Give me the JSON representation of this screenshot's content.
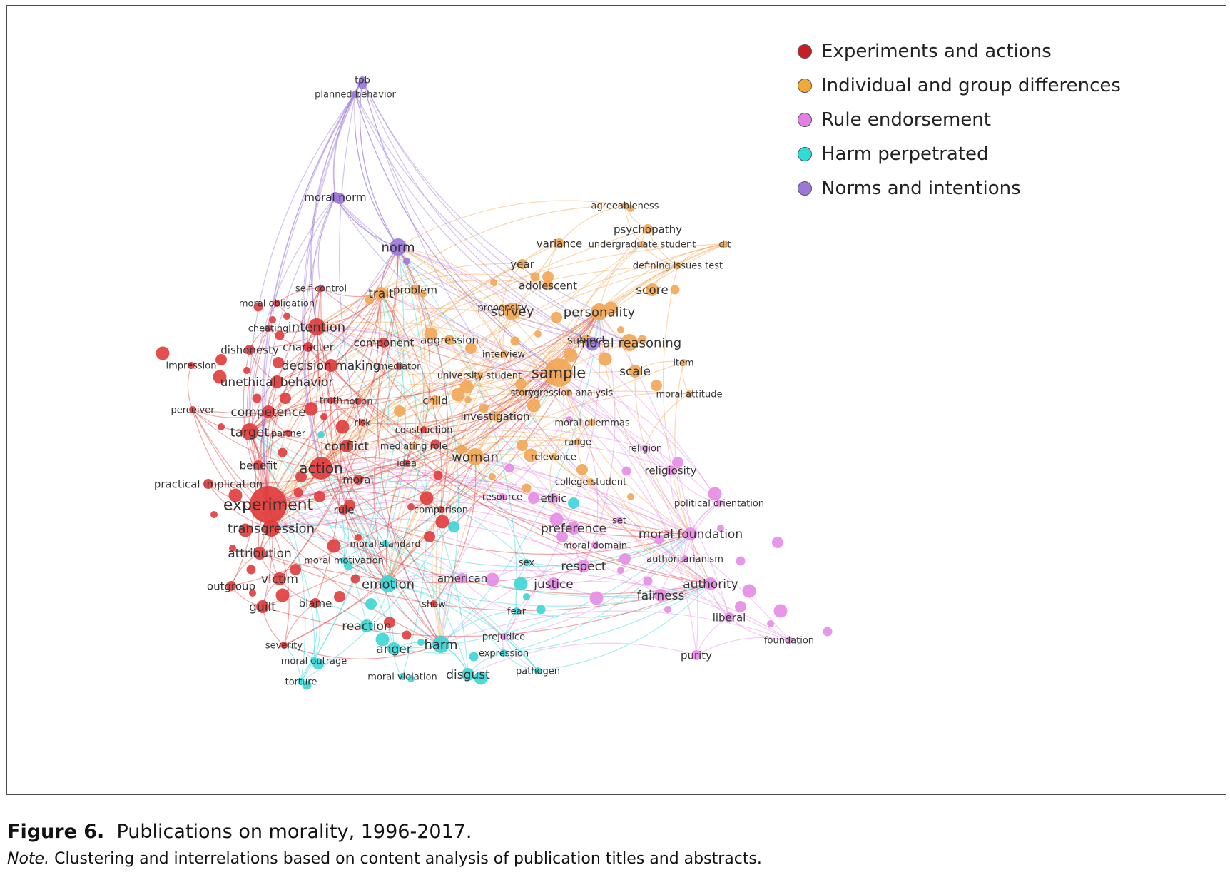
{
  "colors": {
    "experiments": "#e03c3c",
    "differences": "#f2a654",
    "rules": "#e68ce6",
    "harm": "#3cd6d6",
    "norms": "#9b77d9"
  },
  "legend": [
    {
      "label": "Experiments and actions",
      "color": "#c81e23"
    },
    {
      "label": "Individual and group differences",
      "color": "#f2a93b"
    },
    {
      "label": "Rule endorsement",
      "color": "#e57ee5"
    },
    {
      "label": "Harm perpetrated",
      "color": "#2fdcd6"
    },
    {
      "label": "Norms and intentions",
      "color": "#9b77d9"
    }
  ],
  "caption": {
    "figure_label": "Figure 6.",
    "title": "Publications on morality, 1996-2017.",
    "note_label": "Note.",
    "note_text": "Clustering and interrelations based on content analysis of publication titles and abstracts."
  },
  "nodes": [
    {
      "label": "tpb",
      "cluster": "norms",
      "size": 2
    },
    {
      "label": "planned behavior",
      "cluster": "norms",
      "size": 2
    },
    {
      "label": "moral norm",
      "cluster": "norms",
      "size": 3
    },
    {
      "label": "norm",
      "cluster": "norms",
      "size": 5
    },
    {
      "label": "agreeableness",
      "cluster": "differences",
      "size": 2
    },
    {
      "label": "psychopathy",
      "cluster": "differences",
      "size": 3
    },
    {
      "label": "variance",
      "cluster": "differences",
      "size": 3
    },
    {
      "label": "undergraduate student",
      "cluster": "differences",
      "size": 2
    },
    {
      "label": "dit",
      "cluster": "differences",
      "size": 2
    },
    {
      "label": "defining issues test",
      "cluster": "differences",
      "size": 2
    },
    {
      "label": "year",
      "cluster": "differences",
      "size": 3
    },
    {
      "label": "adolescent",
      "cluster": "differences",
      "size": 3
    },
    {
      "label": "score",
      "cluster": "differences",
      "size": 4
    },
    {
      "label": "trait",
      "cluster": "differences",
      "size": 4
    },
    {
      "label": "problem",
      "cluster": "differences",
      "size": 3
    },
    {
      "label": "propensity",
      "cluster": "differences",
      "size": 2
    },
    {
      "label": "survey",
      "cluster": "differences",
      "size": 5
    },
    {
      "label": "personality",
      "cluster": "differences",
      "size": 5
    },
    {
      "label": "subject",
      "cluster": "differences",
      "size": 3
    },
    {
      "label": "moral reasoning",
      "cluster": "differences",
      "size": 5
    },
    {
      "label": "aggression",
      "cluster": "differences",
      "size": 3
    },
    {
      "label": "interview",
      "cluster": "differences",
      "size": 2
    },
    {
      "label": "item",
      "cluster": "differences",
      "size": 2
    },
    {
      "label": "sample",
      "cluster": "differences",
      "size": 7
    },
    {
      "label": "scale",
      "cluster": "differences",
      "size": 4
    },
    {
      "label": "university student",
      "cluster": "differences",
      "size": 2
    },
    {
      "label": "story",
      "cluster": "differences",
      "size": 2
    },
    {
      "label": "regression analysis",
      "cluster": "differences",
      "size": 2
    },
    {
      "label": "moral attitude",
      "cluster": "differences",
      "size": 2
    },
    {
      "label": "child",
      "cluster": "differences",
      "size": 3
    },
    {
      "label": "investigation",
      "cluster": "differences",
      "size": 3
    },
    {
      "label": "moral dilemmas",
      "cluster": "differences",
      "size": 2
    },
    {
      "label": "range",
      "cluster": "differences",
      "size": 2
    },
    {
      "label": "relevance",
      "cluster": "differences",
      "size": 2
    },
    {
      "label": "woman",
      "cluster": "differences",
      "size": 5
    },
    {
      "label": "mediating role",
      "cluster": "differences",
      "size": 2
    },
    {
      "label": "college student",
      "cluster": "differences",
      "size": 2
    },
    {
      "label": "religion",
      "cluster": "rules",
      "size": 2
    },
    {
      "label": "religiosity",
      "cluster": "rules",
      "size": 3
    },
    {
      "label": "political orientation",
      "cluster": "rules",
      "size": 2
    },
    {
      "label": "resource",
      "cluster": "rules",
      "size": 2
    },
    {
      "label": "ethic",
      "cluster": "rules",
      "size": 3
    },
    {
      "label": "preference",
      "cluster": "rules",
      "size": 4
    },
    {
      "label": "set",
      "cluster": "rules",
      "size": 2
    },
    {
      "label": "moral foundation",
      "cluster": "rules",
      "size": 4
    },
    {
      "label": "moral domain",
      "cluster": "rules",
      "size": 2
    },
    {
      "label": "authoritarianism",
      "cluster": "rules",
      "size": 2
    },
    {
      "label": "respect",
      "cluster": "rules",
      "size": 4
    },
    {
      "label": "justice",
      "cluster": "rules",
      "size": 4
    },
    {
      "label": "authority",
      "cluster": "rules",
      "size": 4
    },
    {
      "label": "fairness",
      "cluster": "rules",
      "size": 4
    },
    {
      "label": "liberal",
      "cluster": "rules",
      "size": 3
    },
    {
      "label": "foundation",
      "cluster": "rules",
      "size": 2
    },
    {
      "label": "purity",
      "cluster": "rules",
      "size": 3
    },
    {
      "label": "prejudice",
      "cluster": "rules",
      "size": 2
    },
    {
      "label": "american",
      "cluster": "rules",
      "size": 3
    },
    {
      "label": "sex",
      "cluster": "harm",
      "size": 2
    },
    {
      "label": "fear",
      "cluster": "harm",
      "size": 2
    },
    {
      "label": "expression",
      "cluster": "harm",
      "size": 2
    },
    {
      "label": "pathogen",
      "cluster": "harm",
      "size": 2
    },
    {
      "label": "disgust",
      "cluster": "harm",
      "size": 4
    },
    {
      "label": "harm",
      "cluster": "harm",
      "size": 5
    },
    {
      "label": "anger",
      "cluster": "harm",
      "size": 4
    },
    {
      "label": "reaction",
      "cluster": "harm",
      "size": 4
    },
    {
      "label": "emotion",
      "cluster": "harm",
      "size": 5
    },
    {
      "label": "moral standard",
      "cluster": "harm",
      "size": 2
    },
    {
      "label": "moral motivation",
      "cluster": "harm",
      "size": 2
    },
    {
      "label": "moral outrage",
      "cluster": "harm",
      "size": 2
    },
    {
      "label": "moral violation",
      "cluster": "harm",
      "size": 2
    },
    {
      "label": "torture",
      "cluster": "harm",
      "size": 2
    },
    {
      "label": "self control",
      "cluster": "experiments",
      "size": 2
    },
    {
      "label": "moral obligation",
      "cluster": "experiments",
      "size": 2
    },
    {
      "label": "cheating",
      "cluster": "experiments",
      "size": 2
    },
    {
      "label": "intention",
      "cluster": "experiments",
      "size": 5
    },
    {
      "label": "component",
      "cluster": "experiments",
      "size": 3
    },
    {
      "label": "dishonesty",
      "cluster": "experiments",
      "size": 3
    },
    {
      "label": "character",
      "cluster": "experiments",
      "size": 3
    },
    {
      "label": "impression",
      "cluster": "experiments",
      "size": 2
    },
    {
      "label": "decision making",
      "cluster": "experiments",
      "size": 4
    },
    {
      "label": "mediator",
      "cluster": "experiments",
      "size": 2
    },
    {
      "label": "unethical behavior",
      "cluster": "experiments",
      "size": 4
    },
    {
      "label": "truth",
      "cluster": "experiments",
      "size": 2
    },
    {
      "label": "notion",
      "cluster": "experiments",
      "size": 2
    },
    {
      "label": "perceiver",
      "cluster": "experiments",
      "size": 2
    },
    {
      "label": "competence",
      "cluster": "experiments",
      "size": 4
    },
    {
      "label": "risk",
      "cluster": "experiments",
      "size": 2
    },
    {
      "label": "construction",
      "cluster": "experiments",
      "size": 2
    },
    {
      "label": "target",
      "cluster": "experiments",
      "size": 5
    },
    {
      "label": "partner",
      "cluster": "experiments",
      "size": 2
    },
    {
      "label": "conflict",
      "cluster": "experiments",
      "size": 4
    },
    {
      "label": "idea",
      "cluster": "experiments",
      "size": 2
    },
    {
      "label": "benefit",
      "cluster": "experiments",
      "size": 3
    },
    {
      "label": "action",
      "cluster": "experiments",
      "size": 6
    },
    {
      "label": "moral",
      "cluster": "experiments",
      "size": 3
    },
    {
      "label": "practical implication",
      "cluster": "experiments",
      "size": 3
    },
    {
      "label": "experiment",
      "cluster": "experiments",
      "size": 8
    },
    {
      "label": "rule",
      "cluster": "experiments",
      "size": 3
    },
    {
      "label": "comparison",
      "cluster": "experiments",
      "size": 2
    },
    {
      "label": "transgression",
      "cluster": "experiments",
      "size": 5
    },
    {
      "label": "attribution",
      "cluster": "experiments",
      "size": 4
    },
    {
      "label": "victim",
      "cluster": "experiments",
      "size": 4
    },
    {
      "label": "outgroup",
      "cluster": "experiments",
      "size": 3
    },
    {
      "label": "blame",
      "cluster": "experiments",
      "size": 3
    },
    {
      "label": "guilt",
      "cluster": "experiments",
      "size": 4
    },
    {
      "label": "show",
      "cluster": "experiments",
      "size": 2
    },
    {
      "label": "severity",
      "cluster": "experiments",
      "size": 2
    }
  ]
}
